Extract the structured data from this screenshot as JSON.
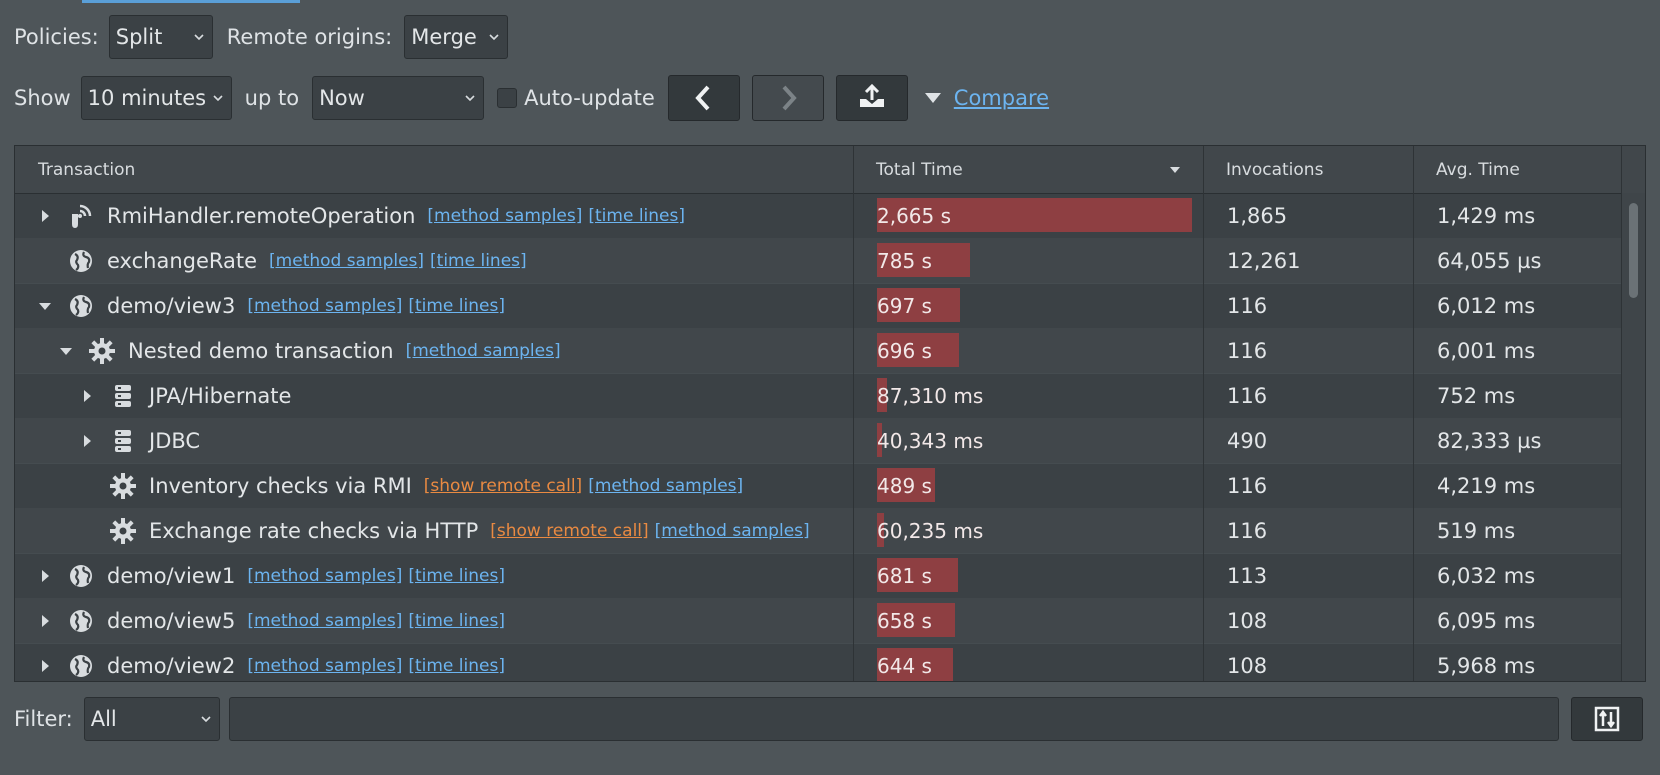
{
  "toolbar1": {
    "policies_label": "Policies:",
    "policies_value": "Split",
    "remote_label": "Remote origins:",
    "remote_value": "Merge"
  },
  "toolbar2": {
    "show_label": "Show",
    "show_value": "10 minutes",
    "upto_label": "up to",
    "upto_value": "Now",
    "autoupdate_label": "Auto-update",
    "compare_label": "Compare"
  },
  "table": {
    "columns": {
      "transaction": "Transaction",
      "total_time": "Total Time",
      "invocations": "Invocations",
      "avg_time": "Avg. Time"
    },
    "rows": [
      {
        "name": "RmiHandler.remoteOperation",
        "icon": "rmi-icon",
        "expander": "collapsed",
        "indent": 0,
        "remote": "",
        "samples": "[method samples]",
        "timelines": "[time lines]",
        "total": "2,665 s",
        "bar_fraction": 1.0,
        "invocations": "1,865",
        "avg": "1,429 ms"
      },
      {
        "name": "exchangeRate",
        "icon": "globe-icon",
        "expander": "none",
        "indent": 0,
        "remote": "",
        "samples": "[method samples]",
        "timelines": "[time lines]",
        "total": "785 s",
        "bar_fraction": 0.295,
        "invocations": "12,261",
        "avg": "64,055 µs"
      },
      {
        "name": "demo/view3",
        "icon": "globe-icon",
        "expander": "expanded",
        "indent": 0,
        "remote": "",
        "samples": "[method samples]",
        "timelines": "[time lines]",
        "total": "697 s",
        "bar_fraction": 0.262,
        "invocations": "116",
        "avg": "6,012 ms"
      },
      {
        "name": "Nested demo transaction",
        "icon": "gear-icon",
        "expander": "expanded",
        "indent": 1,
        "remote": "",
        "samples": "[method samples]",
        "timelines": "",
        "total": "696 s",
        "bar_fraction": 0.261,
        "invocations": "116",
        "avg": "6,001 ms"
      },
      {
        "name": "JPA/Hibernate",
        "icon": "database-icon",
        "expander": "collapsed",
        "indent": 2,
        "remote": "",
        "samples": "",
        "timelines": "",
        "total": "87,310 ms",
        "bar_fraction": 0.033,
        "invocations": "116",
        "avg": "752 ms"
      },
      {
        "name": "JDBC",
        "icon": "database-icon",
        "expander": "collapsed",
        "indent": 2,
        "remote": "",
        "samples": "",
        "timelines": "",
        "total": "40,343 ms",
        "bar_fraction": 0.015,
        "invocations": "490",
        "avg": "82,333 µs"
      },
      {
        "name": "Inventory checks via RMI",
        "icon": "gear-icon",
        "expander": "none",
        "indent": 2,
        "remote": "[show remote call]",
        "samples": "[method samples]",
        "timelines": "",
        "total": "489 s",
        "bar_fraction": 0.183,
        "invocations": "116",
        "avg": "4,219 ms"
      },
      {
        "name": "Exchange rate checks via HTTP",
        "icon": "gear-icon",
        "expander": "none",
        "indent": 2,
        "remote": "[show remote call]",
        "samples": "[method samples]",
        "timelines": "",
        "total": "60,235 ms",
        "bar_fraction": 0.023,
        "invocations": "116",
        "avg": "519 ms"
      },
      {
        "name": "demo/view1",
        "icon": "globe-icon",
        "expander": "collapsed",
        "indent": 0,
        "remote": "",
        "samples": "[method samples]",
        "timelines": "[time lines]",
        "total": "681 s",
        "bar_fraction": 0.256,
        "invocations": "113",
        "avg": "6,032 ms"
      },
      {
        "name": "demo/view5",
        "icon": "globe-icon",
        "expander": "collapsed",
        "indent": 0,
        "remote": "",
        "samples": "[method samples]",
        "timelines": "[time lines]",
        "total": "658 s",
        "bar_fraction": 0.247,
        "invocations": "108",
        "avg": "6,095 ms"
      },
      {
        "name": "demo/view2",
        "icon": "globe-icon",
        "expander": "collapsed",
        "indent": 0,
        "remote": "",
        "samples": "[method samples]",
        "timelines": "[time lines]",
        "total": "644 s",
        "bar_fraction": 0.242,
        "invocations": "108",
        "avg": "5,968 ms"
      }
    ]
  },
  "filter": {
    "label": "Filter:",
    "value": "All",
    "text": ""
  }
}
